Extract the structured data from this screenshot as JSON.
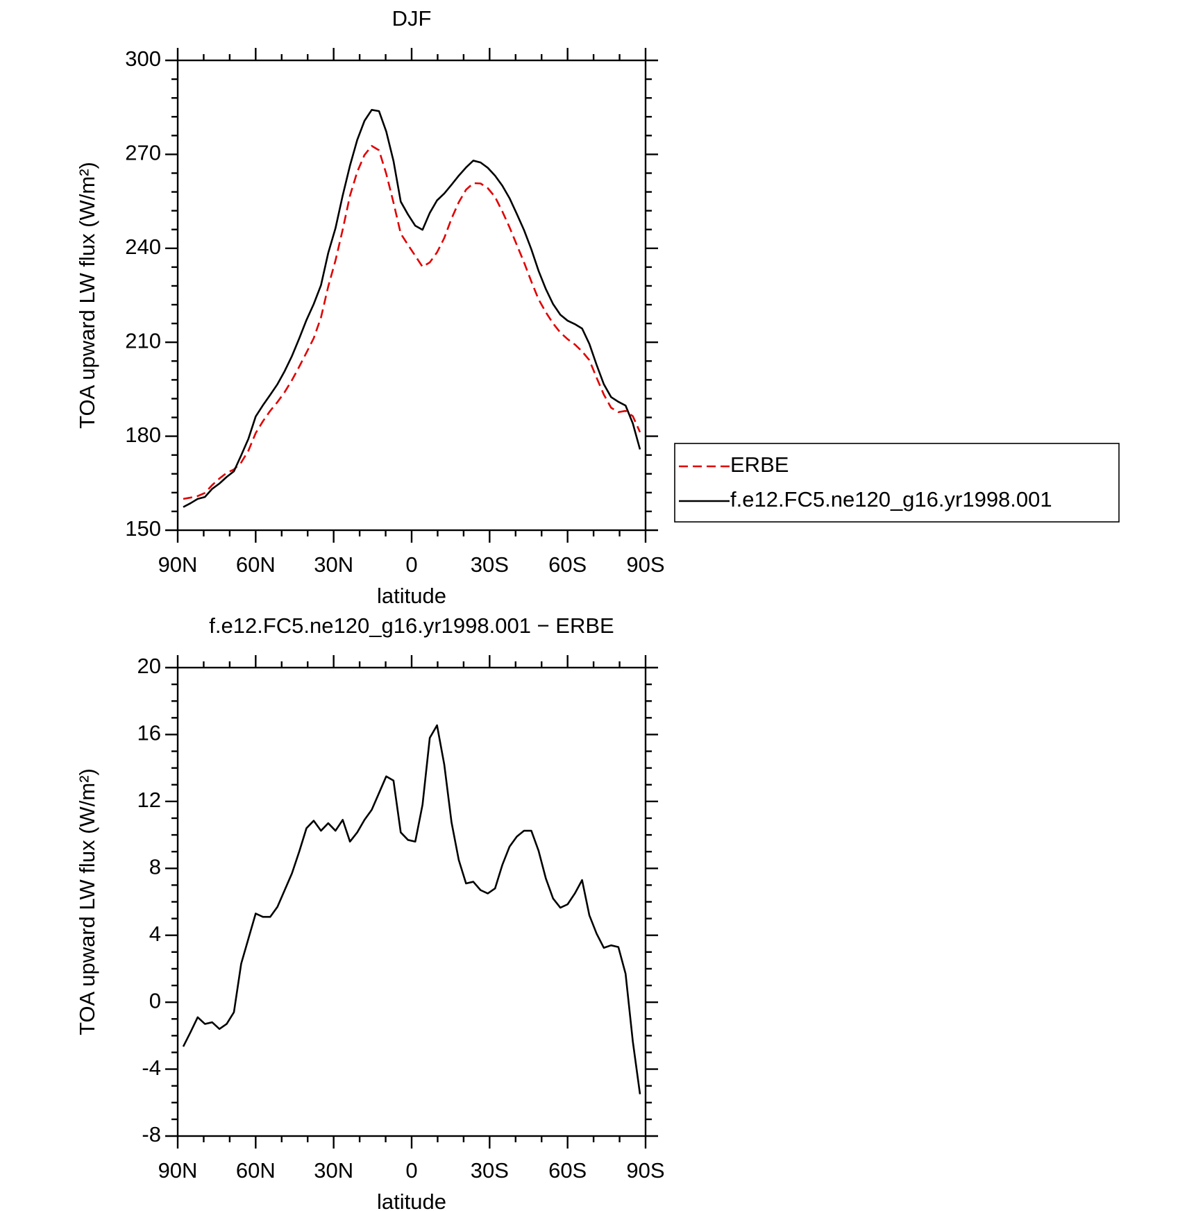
{
  "chart_data": [
    {
      "type": "line",
      "title": "DJF",
      "x_label": "latitude",
      "y_label": "TOA upward LW flux (W/m²)",
      "x": [
        87.86,
        85.1,
        82.31,
        79.53,
        76.74,
        73.95,
        71.16,
        68.37,
        65.58,
        62.79,
        60.0,
        57.21,
        54.42,
        51.63,
        48.84,
        46.05,
        43.25,
        40.46,
        37.67,
        34.88,
        32.09,
        29.3,
        26.51,
        23.72,
        20.93,
        18.14,
        15.35,
        12.56,
        9.77,
        6.98,
        4.19,
        1.4,
        -1.4,
        -4.19,
        -6.98,
        -9.77,
        -12.56,
        -15.35,
        -18.14,
        -20.93,
        -23.72,
        -26.51,
        -29.3,
        -32.09,
        -34.88,
        -37.67,
        -40.46,
        -43.25,
        -46.05,
        -48.84,
        -51.63,
        -54.42,
        -57.21,
        -60.0,
        -62.79,
        -65.58,
        -68.37,
        -71.16,
        -73.95,
        -76.74,
        -79.53,
        -82.31,
        -85.1,
        -87.86
      ],
      "series": [
        {
          "name": "ERBE",
          "color": "#e00000",
          "line_style": "dashed",
          "values": [
            160.0,
            160.4,
            160.9,
            161.9,
            164.4,
            166.5,
            168.3,
            169.4,
            171.6,
            175.4,
            181.0,
            184.8,
            188.1,
            190.9,
            194.1,
            197.9,
            202.2,
            206.7,
            211.3,
            217.9,
            227.8,
            236.1,
            246.0,
            256.8,
            264.4,
            269.8,
            272.7,
            271.3,
            263.8,
            254.6,
            244.7,
            241.1,
            237.6,
            234.1,
            235.5,
            238.7,
            243.3,
            249.5,
            254.7,
            258.7,
            260.8,
            260.7,
            259.2,
            256.4,
            251.8,
            246.7,
            241.1,
            235.5,
            229.4,
            223.7,
            219.6,
            216.0,
            213.1,
            211.0,
            209.3,
            207.1,
            204.3,
            198.7,
            193.3,
            189.1,
            187.7,
            188.1,
            186.4,
            181.3
          ]
        },
        {
          "name": "f.e12.FC5.ne120_g16.yr1998.001",
          "color": "#000000",
          "line_style": "solid",
          "values": [
            157.4,
            158.6,
            160.0,
            160.6,
            163.2,
            164.9,
            167.0,
            168.8,
            173.9,
            179.2,
            186.3,
            189.9,
            193.2,
            196.6,
            200.8,
            205.6,
            211.2,
            217.1,
            222.2,
            228.2,
            238.5,
            246.4,
            256.9,
            266.4,
            274.6,
            280.7,
            284.2,
            283.8,
            277.3,
            267.9,
            254.9,
            250.8,
            247.2,
            245.9,
            251.3,
            255.3,
            257.5,
            260.3,
            263.2,
            265.8,
            268.0,
            267.4,
            265.7,
            263.2,
            260.0,
            256.0,
            251.0,
            245.8,
            239.7,
            232.8,
            227.0,
            222.2,
            218.8,
            216.9,
            215.8,
            214.4,
            209.5,
            202.8,
            196.6,
            192.5,
            191.0,
            189.8,
            184.1,
            175.8
          ]
        }
      ],
      "xlim": [
        90,
        -90
      ],
      "xticks": [
        {
          "value": 90,
          "label": "90N"
        },
        {
          "value": 60,
          "label": "60N"
        },
        {
          "value": 30,
          "label": "30N"
        },
        0,
        {
          "value": -30,
          "label": "30S"
        },
        {
          "value": -60,
          "label": "60S"
        },
        {
          "value": -90,
          "label": "90S"
        }
      ],
      "ylim": [
        150,
        300
      ],
      "yticks": [
        150,
        180,
        210,
        240,
        270,
        300
      ],
      "legend": "right"
    },
    {
      "type": "line",
      "title": "f.e12.FC5.ne120_g16.yr1998.001 − ERBE",
      "x_label": "latitude",
      "y_label": "TOA upward LW flux (W/m²)",
      "x": [
        87.86,
        85.1,
        82.31,
        79.53,
        76.74,
        73.95,
        71.16,
        68.37,
        65.58,
        62.79,
        60.0,
        57.21,
        54.42,
        51.63,
        48.84,
        46.05,
        43.25,
        40.46,
        37.67,
        34.88,
        32.09,
        29.3,
        26.51,
        23.72,
        20.93,
        18.14,
        15.35,
        12.56,
        9.77,
        6.98,
        4.19,
        1.4,
        -1.4,
        -4.19,
        -6.98,
        -9.77,
        -12.56,
        -15.35,
        -18.14,
        -20.93,
        -23.72,
        -26.51,
        -29.3,
        -32.09,
        -34.88,
        -37.67,
        -40.46,
        -43.25,
        -46.05,
        -48.84,
        -51.63,
        -54.42,
        -57.21,
        -60.0,
        -62.79,
        -65.58,
        -68.37,
        -71.16,
        -73.95,
        -76.74,
        -79.53,
        -82.31,
        -85.1,
        -87.86
      ],
      "values": [
        -2.65,
        -1.8,
        -0.9,
        -1.3,
        -1.2,
        -1.6,
        -1.3,
        -0.6,
        2.3,
        3.8,
        5.3,
        5.1,
        5.1,
        5.7,
        6.7,
        7.7,
        9.0,
        10.4,
        10.85,
        10.25,
        10.7,
        10.25,
        10.9,
        9.6,
        10.15,
        10.9,
        11.5,
        12.5,
        13.5,
        13.25,
        10.15,
        9.7,
        9.6,
        11.8,
        15.8,
        16.55,
        14.2,
        10.75,
        8.5,
        7.1,
        7.2,
        6.7,
        6.5,
        6.8,
        8.2,
        9.3,
        9.9,
        10.25,
        10.25,
        9.05,
        7.4,
        6.2,
        5.65,
        5.85,
        6.5,
        7.3,
        5.2,
        4.1,
        3.25,
        3.4,
        3.3,
        1.7,
        -2.35,
        -5.5
      ],
      "color": "#000000",
      "xlim": [
        90,
        -90
      ],
      "xticks": [
        {
          "value": 90,
          "label": "90N"
        },
        {
          "value": 60,
          "label": "60N"
        },
        {
          "value": 30,
          "label": "30N"
        },
        0,
        {
          "value": -30,
          "label": "30S"
        },
        {
          "value": -60,
          "label": "60S"
        },
        {
          "value": -90,
          "label": "90S"
        }
      ],
      "ylim": [
        -8,
        20
      ],
      "yticks": [
        -8,
        -4,
        0,
        4,
        8,
        12,
        16,
        20
      ]
    }
  ]
}
